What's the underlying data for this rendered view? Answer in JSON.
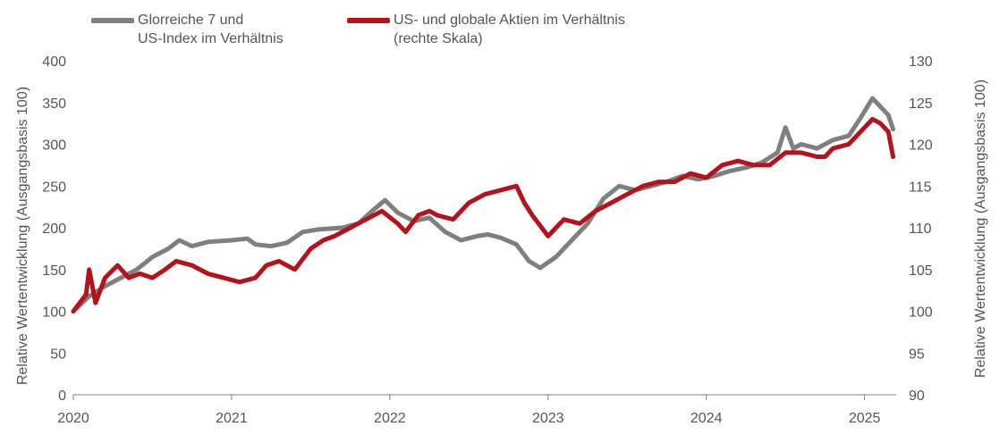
{
  "colors": {
    "gray_series": "#7f7f7f",
    "red_series": "#b5121b",
    "axis": "#7f7f7f",
    "text": "#555555"
  },
  "legend": {
    "series1": {
      "line1": "Glorreiche 7 und",
      "line2": "US-Index im Verhältnis"
    },
    "series2": {
      "line1": "US- und globale Aktien im Verhältnis",
      "line2": "(rechte Skala)"
    }
  },
  "axes": {
    "ylabel_left": "Relative Wertentwicklung (Ausgangsbasis 100)",
    "ylabel_right": "Relative Wertentwicklung (Ausgangsbasis 100)"
  },
  "chart_data": {
    "type": "line",
    "title": "",
    "x_ticks": [
      "2020",
      "2021",
      "2022",
      "2023",
      "2024",
      "2025"
    ],
    "x_range": [
      2020.0,
      2025.2
    ],
    "y_left": {
      "range": [
        0,
        400
      ],
      "ticks": [
        0,
        50,
        100,
        150,
        200,
        250,
        300,
        350,
        400
      ]
    },
    "y_right": {
      "range": [
        90,
        130
      ],
      "ticks": [
        90,
        95,
        100,
        105,
        110,
        115,
        120,
        125,
        130
      ]
    },
    "grid": false,
    "legend_position": "top",
    "series": [
      {
        "name": "Glorreiche 7 und US-Index im Verhältnis",
        "axis": "left",
        "color": "#7f7f7f",
        "x": [
          2020.0,
          2020.1,
          2020.2,
          2020.3,
          2020.4,
          2020.5,
          2020.6,
          2020.67,
          2020.75,
          2020.85,
          2021.0,
          2021.1,
          2021.15,
          2021.25,
          2021.35,
          2021.45,
          2021.55,
          2021.7,
          2021.8,
          2021.9,
          2021.97,
          2022.05,
          2022.15,
          2022.25,
          2022.35,
          2022.45,
          2022.55,
          2022.62,
          2022.7,
          2022.8,
          2022.88,
          2022.95,
          2023.05,
          2023.15,
          2023.25,
          2023.35,
          2023.45,
          2023.55,
          2023.65,
          2023.75,
          2023.85,
          2023.95,
          2024.05,
          2024.15,
          2024.25,
          2024.35,
          2024.45,
          2024.5,
          2024.55,
          2024.6,
          2024.7,
          2024.8,
          2024.9,
          2024.97,
          2025.05,
          2025.1,
          2025.15,
          2025.18
        ],
        "values": [
          100,
          118,
          130,
          140,
          150,
          165,
          175,
          185,
          178,
          183,
          185,
          187,
          180,
          178,
          182,
          195,
          198,
          200,
          205,
          222,
          233,
          218,
          208,
          212,
          195,
          185,
          190,
          192,
          188,
          180,
          160,
          152,
          165,
          185,
          205,
          235,
          250,
          245,
          250,
          255,
          262,
          258,
          262,
          268,
          272,
          278,
          290,
          320,
          295,
          300,
          295,
          305,
          310,
          330,
          355,
          345,
          335,
          318
        ]
      },
      {
        "name": "US- und globale Aktien im Verhältnis (rechte Skala)",
        "axis": "right",
        "color": "#b5121b",
        "x": [
          2020.0,
          2020.08,
          2020.1,
          2020.14,
          2020.2,
          2020.28,
          2020.35,
          2020.42,
          2020.5,
          2020.58,
          2020.65,
          2020.75,
          2020.85,
          2020.95,
          2021.05,
          2021.15,
          2021.22,
          2021.3,
          2021.4,
          2021.5,
          2021.58,
          2021.65,
          2021.75,
          2021.85,
          2021.95,
          2022.05,
          2022.1,
          2022.18,
          2022.25,
          2022.3,
          2022.4,
          2022.5,
          2022.55,
          2022.6,
          2022.7,
          2022.8,
          2022.85,
          2022.9,
          2023.0,
          2023.05,
          2023.1,
          2023.2,
          2023.3,
          2023.4,
          2023.5,
          2023.6,
          2023.7,
          2023.8,
          2023.9,
          2024.0,
          2024.1,
          2024.2,
          2024.3,
          2024.4,
          2024.5,
          2024.6,
          2024.7,
          2024.75,
          2024.8,
          2024.9,
          2025.0,
          2025.05,
          2025.1,
          2025.15,
          2025.18
        ],
        "values": [
          100,
          102,
          105,
          101,
          104,
          105.5,
          104,
          104.5,
          104,
          105,
          106,
          105.5,
          104.5,
          104,
          103.5,
          104,
          105.5,
          106,
          105,
          107.5,
          108.5,
          109,
          110,
          111,
          112,
          110.5,
          109.5,
          111.5,
          112,
          111.5,
          111,
          113,
          113.5,
          114,
          114.5,
          115,
          113,
          111.5,
          109,
          110,
          111,
          110.5,
          112,
          113,
          114,
          115,
          115.5,
          115.5,
          116.5,
          116,
          117.5,
          118,
          117.5,
          117.5,
          119,
          119,
          118.5,
          118.5,
          119.5,
          120,
          122,
          123,
          122.5,
          121.5,
          118.5
        ]
      }
    ]
  }
}
